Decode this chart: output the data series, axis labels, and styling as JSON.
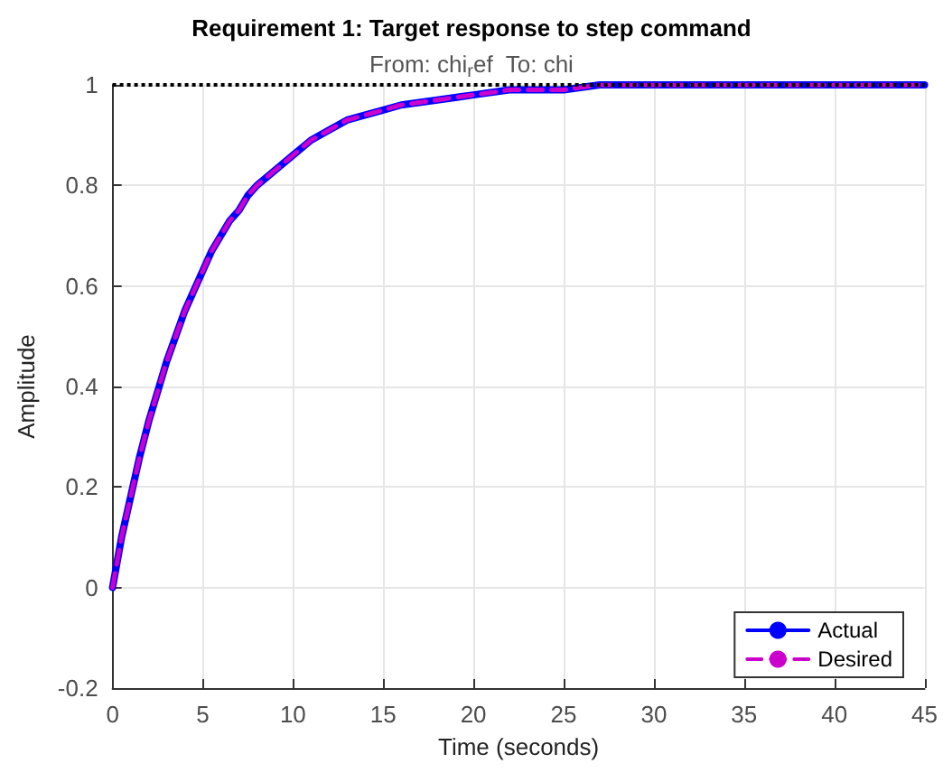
{
  "chart_data": {
    "type": "line",
    "title": "Requirement 1: Target response to step command",
    "subtitle": "From: chi$_{r}$ef  To: chi",
    "xlabel": "Time (seconds)",
    "ylabel": "Amplitude",
    "x": [
      0,
      0.5,
      1,
      1.5,
      2,
      2.5,
      3,
      3.5,
      4,
      4.5,
      5,
      5.5,
      6,
      6.5,
      7,
      7.5,
      8,
      9,
      10,
      11,
      12,
      13,
      14,
      15,
      16,
      18,
      20,
      22,
      25,
      27,
      30,
      35,
      40,
      45
    ],
    "series": [
      {
        "name": "Actual",
        "color": "#0000ff",
        "line_style": "solid",
        "values": [
          0,
          0.1,
          0.18,
          0.26,
          0.33,
          0.39,
          0.45,
          0.5,
          0.55,
          0.59,
          0.63,
          0.67,
          0.7,
          0.73,
          0.75,
          0.78,
          0.8,
          0.83,
          0.86,
          0.89,
          0.91,
          0.93,
          0.94,
          0.95,
          0.96,
          0.97,
          0.98,
          0.99,
          0.99,
          1,
          1,
          1,
          1,
          1
        ]
      },
      {
        "name": "Desired",
        "color": "#cc00cc",
        "line_style": "dashed",
        "values": [
          0,
          0.1,
          0.18,
          0.26,
          0.33,
          0.39,
          0.45,
          0.5,
          0.55,
          0.59,
          0.63,
          0.67,
          0.7,
          0.73,
          0.75,
          0.78,
          0.8,
          0.83,
          0.86,
          0.89,
          0.91,
          0.93,
          0.94,
          0.95,
          0.96,
          0.97,
          0.98,
          0.99,
          0.99,
          1,
          1,
          1,
          1,
          1
        ]
      }
    ],
    "xlim": [
      0,
      45
    ],
    "xticks": [
      0,
      5,
      10,
      15,
      20,
      25,
      30,
      35,
      40,
      45
    ],
    "ylim": [
      -0.2,
      1
    ],
    "yticks": [
      -0.2,
      0,
      0.2,
      0.4,
      0.6,
      0.8,
      1
    ],
    "ref_lines": [
      {
        "axis": "y",
        "value": 1,
        "color": "#000000",
        "line_style": "dotted"
      }
    ],
    "grid": true,
    "legend": "bottom right",
    "marker": "none"
  }
}
